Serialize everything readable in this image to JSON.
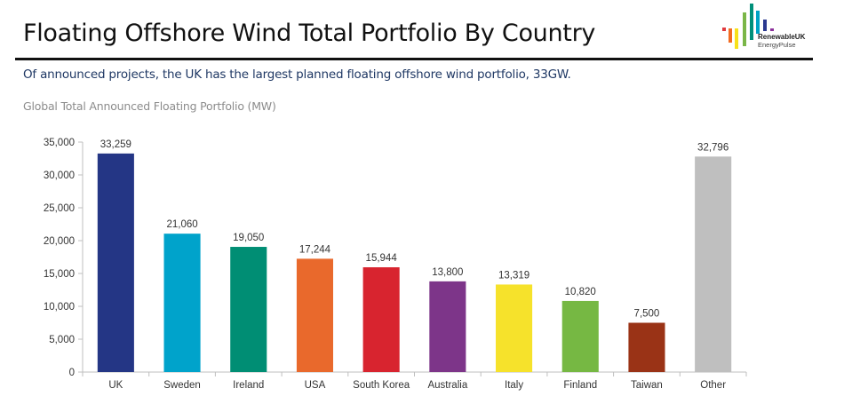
{
  "header": {
    "title": "Floating Offshore Wind Total Portfolio By Country",
    "subtitle": "Of announced projects, the UK has the largest planned floating offshore wind portfolio, 33GW."
  },
  "logo": {
    "line1": "RenewableUK",
    "line2": "EnergyPulse",
    "bar_colors": [
      "#e03a3e",
      "#f26b21",
      "#f7e11b",
      "#7ab648",
      "#00907a",
      "#00a3c4",
      "#2b3990",
      "#8b2f9a"
    ]
  },
  "chart_data": {
    "type": "bar",
    "title": "Global Total Announced Floating Portfolio (MW)",
    "xlabel": "",
    "ylabel": "",
    "ylim": [
      0,
      35000
    ],
    "yticks": [
      0,
      5000,
      10000,
      15000,
      20000,
      25000,
      30000,
      35000
    ],
    "ytick_labels": [
      "0",
      "5,000",
      "10,000",
      "15,000",
      "20,000",
      "25,000",
      "30,000",
      "35,000"
    ],
    "grid": false,
    "legend": "none",
    "categories": [
      "UK",
      "Sweden",
      "Ireland",
      "USA",
      "South Korea",
      "Australia",
      "Italy",
      "Finland",
      "Taiwan",
      "Other"
    ],
    "values": [
      33259,
      21060,
      19050,
      17244,
      15944,
      13800,
      13319,
      10820,
      7500,
      32796
    ],
    "data_labels": [
      "33,259",
      "21,060",
      "19,050",
      "17,244",
      "15,944",
      "13,800",
      "13,319",
      "10,820",
      "7,500",
      "32,796"
    ],
    "colors": [
      "#243685",
      "#00a3cb",
      "#008e74",
      "#e9692c",
      "#d8242f",
      "#7d3589",
      "#f6e22b",
      "#76b843",
      "#9a3316",
      "#bfbfbf"
    ]
  }
}
